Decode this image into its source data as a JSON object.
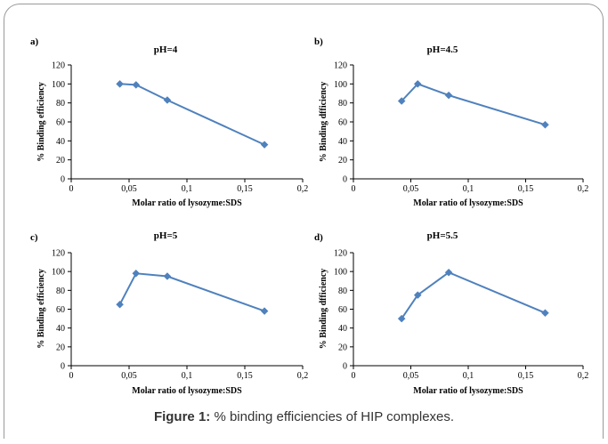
{
  "caption": {
    "label": "Figure 1:",
    "text": "% binding efficiencies of HIP complexes."
  },
  "colors": {
    "line": "#4f81bd",
    "marker": "#4f81bd",
    "axis": "#000000"
  },
  "chart_data": [
    {
      "type": "line",
      "panel_label": "a)",
      "title": "pH=4",
      "xlabel": "Molar ratio of lysozyme:SDS",
      "ylabel": "% Binding efficiency",
      "xlim": [
        0,
        0.2
      ],
      "ylim": [
        0,
        120
      ],
      "x_ticks": [
        "0",
        "0,05",
        "0,1",
        "0,15",
        "0,2"
      ],
      "y_ticks": [
        "0",
        "20",
        "40",
        "60",
        "80",
        "100",
        "120"
      ],
      "x": [
        0.042,
        0.056,
        0.083,
        0.167
      ],
      "y": [
        100,
        99,
        83,
        36
      ]
    },
    {
      "type": "line",
      "panel_label": "b)",
      "title": "pH=4.5",
      "xlabel": "Molar ratio of lysozyme:SDS",
      "ylabel": "% Binding dfficiency",
      "xlim": [
        0,
        0.2
      ],
      "ylim": [
        0,
        120
      ],
      "x_ticks": [
        "0",
        "0,05",
        "0,1",
        "0,15",
        "0,2"
      ],
      "y_ticks": [
        "0",
        "20",
        "40",
        "60",
        "80",
        "100",
        "120"
      ],
      "x": [
        0.042,
        0.056,
        0.083,
        0.167
      ],
      "y": [
        82,
        100,
        88,
        57
      ]
    },
    {
      "type": "line",
      "panel_label": "c)",
      "title": "pH=5",
      "xlabel": "Molar ratio of lysozyme:SDS",
      "ylabel": "% Binding efficiency",
      "xlim": [
        0,
        0.2
      ],
      "ylim": [
        0,
        120
      ],
      "x_ticks": [
        "0",
        "0,05",
        "0,1",
        "0,15",
        "0,2"
      ],
      "y_ticks": [
        "0",
        "20",
        "40",
        "60",
        "80",
        "100",
        "120"
      ],
      "x": [
        0.042,
        0.056,
        0.083,
        0.167
      ],
      "y": [
        65,
        98,
        95,
        58
      ]
    },
    {
      "type": "line",
      "panel_label": "d)",
      "title": "pH=5.5",
      "xlabel": "Molar ratio of lysozyme:SDS",
      "ylabel": "% Binding dfficiency",
      "xlim": [
        0,
        0.2
      ],
      "ylim": [
        0,
        120
      ],
      "x_ticks": [
        "0",
        "0,05",
        "0,1",
        "0,15",
        "0,2"
      ],
      "y_ticks": [
        "0",
        "20",
        "40",
        "60",
        "80",
        "100",
        "120"
      ],
      "x": [
        0.042,
        0.056,
        0.083,
        0.167
      ],
      "y": [
        50,
        75,
        99,
        56
      ]
    }
  ]
}
